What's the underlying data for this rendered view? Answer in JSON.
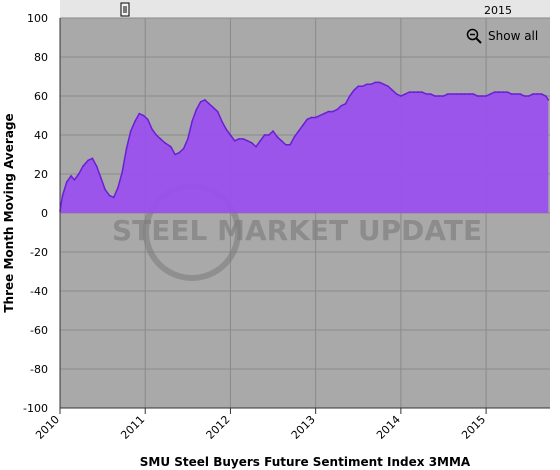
{
  "chart_data": {
    "type": "area",
    "title": "",
    "xlabel": "SMU Steel Buyers Future Sentiment Index 3MMA",
    "ylabel": "Three Month Moving Average",
    "ylim": [
      -100,
      100
    ],
    "yticks": [
      100,
      80,
      60,
      40,
      20,
      0,
      -20,
      -40,
      -60,
      -80,
      -100
    ],
    "xlim": [
      2010.0,
      2015.75
    ],
    "xticks": [
      "2010",
      "2011",
      "2012",
      "2013",
      "2014",
      "2015"
    ],
    "navigator_year_label": "2015",
    "watermark": "STEEL MARKET UPDATE",
    "grid": true,
    "colors": {
      "area": "#9a4ef0",
      "line": "#6a1fd6",
      "plot_bg": "#a9a9a9",
      "grid": "#8a8a8a"
    },
    "series": [
      {
        "x": [
          2010.0,
          2010.03,
          2010.08,
          2010.13,
          2010.17,
          2010.22,
          2010.27,
          2010.33,
          2010.38,
          2010.43,
          2010.48,
          2010.53,
          2010.58,
          2010.63,
          2010.68,
          2010.73,
          2010.78,
          2010.83,
          2010.88,
          2010.93,
          2010.98,
          2011.03,
          2011.08,
          2011.13,
          2011.18,
          2011.23,
          2011.3,
          2011.35,
          2011.4,
          2011.45,
          2011.5,
          2011.55,
          2011.6,
          2011.65,
          2011.7,
          2011.75,
          2011.8,
          2011.85,
          2011.9,
          2011.95,
          2012.0,
          2012.05,
          2012.1,
          2012.15,
          2012.2,
          2012.25,
          2012.3,
          2012.35,
          2012.4,
          2012.45,
          2012.5,
          2012.55,
          2012.6,
          2012.65,
          2012.7,
          2012.75,
          2012.8,
          2012.85,
          2012.9,
          2012.95,
          2013.0,
          2013.05,
          2013.1,
          2013.15,
          2013.2,
          2013.25,
          2013.3,
          2013.35,
          2013.4,
          2013.45,
          2013.5,
          2013.55,
          2013.6,
          2013.65,
          2013.7,
          2013.75,
          2013.8,
          2013.85,
          2013.9,
          2013.95,
          2014.0,
          2014.05,
          2014.1,
          2014.15,
          2014.2,
          2014.25,
          2014.3,
          2014.35,
          2014.4,
          2014.45,
          2014.5,
          2014.55,
          2014.6,
          2014.65,
          2014.7,
          2014.75,
          2014.8,
          2014.85,
          2014.9,
          2014.95,
          2015.0,
          2015.05,
          2015.1,
          2015.15,
          2015.2,
          2015.25,
          2015.3,
          2015.35,
          2015.4,
          2015.45,
          2015.5,
          2015.55,
          2015.6,
          2015.65,
          2015.7,
          2015.73
        ],
        "y": [
          1,
          9,
          16,
          19,
          17,
          20,
          24,
          27,
          28,
          24,
          18,
          12,
          9,
          8,
          13,
          21,
          33,
          42,
          47,
          51,
          50,
          48,
          43,
          40,
          38,
          36,
          34,
          30,
          31,
          33,
          38,
          47,
          53,
          57,
          58,
          56,
          54,
          52,
          47,
          43,
          40,
          37,
          38,
          38,
          37,
          36,
          34,
          37,
          40,
          40,
          42,
          39,
          37,
          35,
          35,
          39,
          42,
          45,
          48,
          49,
          49,
          50,
          51,
          52,
          52,
          53,
          55,
          56,
          60,
          63,
          65,
          65,
          66,
          66,
          67,
          67,
          66,
          65,
          63,
          61,
          60,
          61,
          62,
          62,
          62,
          62,
          61,
          61,
          60,
          60,
          60,
          61,
          61,
          61,
          61,
          61,
          61,
          61,
          60,
          60,
          60,
          61,
          62,
          62,
          62,
          62,
          61,
          61,
          61,
          60,
          60,
          61,
          61,
          61,
          60,
          58
        ]
      }
    ]
  },
  "ui": {
    "show_all_label": "Show all",
    "zoom_icon": "zoom-out-icon"
  }
}
